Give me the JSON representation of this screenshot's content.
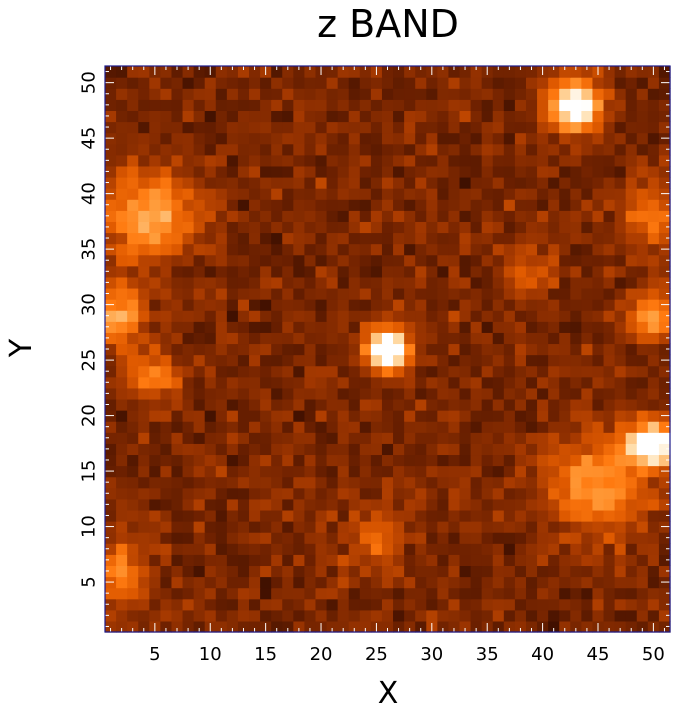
{
  "chart_data": {
    "type": "heatmap",
    "title": "z BAND",
    "xlabel": "X",
    "ylabel": "Y",
    "grid_size": [
      51,
      51
    ],
    "xlim": [
      0.5,
      51.5
    ],
    "ylim": [
      0.5,
      51.5
    ],
    "xticks": [
      5,
      10,
      15,
      20,
      25,
      30,
      35,
      40,
      45,
      50
    ],
    "yticks": [
      5,
      10,
      15,
      20,
      25,
      30,
      35,
      40,
      45,
      50
    ],
    "colormap": [
      "#000000",
      "#3a0e00",
      "#6e2100",
      "#a83a00",
      "#e05a00",
      "#ff7a10",
      "#ffa040",
      "#ffe0b0",
      "#ffffff"
    ],
    "frame_color": "#1a1a8c",
    "background_level": 0.28,
    "sources": [
      {
        "x": 26,
        "y": 26,
        "peak": 1.0,
        "sigma": 1.3
      },
      {
        "x": 43,
        "y": 48,
        "peak": 0.95,
        "sigma": 1.5
      },
      {
        "x": 50,
        "y": 17.5,
        "peak": 0.95,
        "sigma": 1.4
      },
      {
        "x": 45,
        "y": 14,
        "peak": 0.45,
        "sigma": 3.0
      },
      {
        "x": 4.5,
        "y": 38,
        "peak": 0.5,
        "sigma": 2.8
      },
      {
        "x": 1.5,
        "y": 29,
        "peak": 0.5,
        "sigma": 1.8
      },
      {
        "x": 5,
        "y": 23.5,
        "peak": 0.35,
        "sigma": 1.6
      },
      {
        "x": 1.5,
        "y": 6,
        "peak": 0.35,
        "sigma": 2.0
      },
      {
        "x": 50,
        "y": 29,
        "peak": 0.45,
        "sigma": 1.6
      },
      {
        "x": 50,
        "y": 38,
        "peak": 0.3,
        "sigma": 2.0
      },
      {
        "x": 25,
        "y": 9,
        "peak": 0.25,
        "sigma": 2.0
      },
      {
        "x": 39,
        "y": 33,
        "peak": 0.2,
        "sigma": 1.8
      }
    ]
  }
}
